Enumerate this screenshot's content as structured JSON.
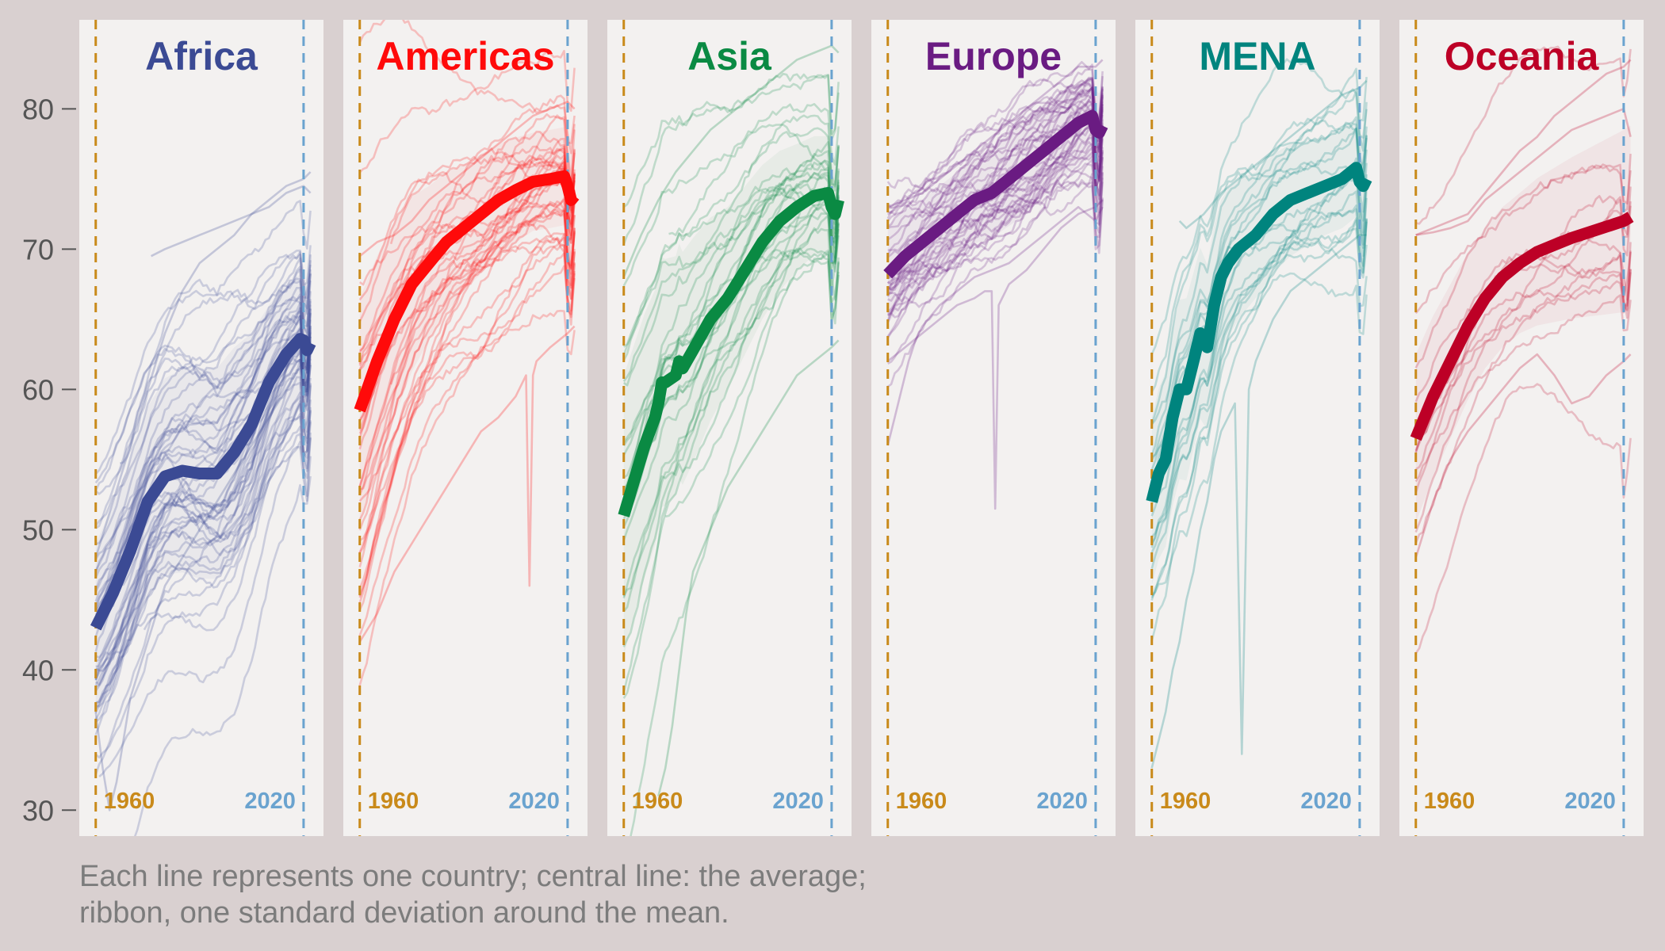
{
  "caption": {
    "line1": "Each line represents one country; central line: the average;",
    "line2": "ribbon, one standard deviation around the mean."
  },
  "colors": {
    "background": "#d9d0d0",
    "panel": "#f3f1f0",
    "start_line": "#c98a1a",
    "end_line": "#6aa3cf",
    "axis_text": "#555555"
  },
  "chart_data": {
    "type": "line",
    "xlim": [
      1958,
      2023
    ],
    "ylim": [
      29,
      85.5
    ],
    "yticks": [
      30,
      40,
      50,
      60,
      70,
      80
    ],
    "ref_lines": [
      {
        "x": 1960,
        "label": "1960",
        "color": "#c98a1a"
      },
      {
        "x": 2020,
        "label": "2020",
        "color": "#6aa3cf"
      }
    ],
    "panels": [
      {
        "name": "Africa",
        "color": "#3b4a94",
        "n_countries": 54,
        "mean": {
          "x": [
            1960,
            1965,
            1970,
            1975,
            1980,
            1985,
            1990,
            1995,
            2000,
            2005,
            2010,
            2015,
            2019,
            2020,
            2021,
            2022
          ],
          "y": [
            43,
            45.5,
            48.5,
            52,
            53.8,
            54.2,
            54,
            54,
            55.5,
            57.5,
            60.5,
            62.5,
            63.6,
            63.5,
            62.8,
            63.3
          ]
        },
        "band": {
          "x": [
            1960,
            1970,
            1980,
            1990,
            2000,
            2010,
            2020
          ],
          "sd": [
            6,
            6.5,
            7,
            7.5,
            7.5,
            5.5,
            4.5
          ]
        },
        "outliers": [
          {
            "x": [
              1960,
              1965,
              1970,
              1975,
              1980,
              1985,
              1990,
              1995,
              2000,
              2005,
              2010,
              2015,
              2020,
              2022
            ],
            "y": [
              48,
              52,
              56,
              60,
              64,
              67,
              69,
              70,
              71,
              72.5,
              73.5,
              74.5,
              75,
              75.5
            ]
          },
          {
            "x": [
              1976,
              1980,
              1985,
              1990,
              1995,
              2000,
              2005,
              2010,
              2015,
              2020,
              2022
            ],
            "y": [
              69.5,
              70,
              70.5,
              71,
              71.5,
              72,
              72.5,
              73,
              74,
              74.5,
              74
            ]
          },
          {
            "x": [
              1960,
              1962,
              1964,
              1966,
              1968,
              1970,
              1975,
              1980,
              1985,
              1990,
              1995,
              2000,
              2010,
              2020,
              2022
            ],
            "y": [
              37,
              33,
              30,
              32,
              35,
              38,
              42,
              46,
              48,
              50,
              52,
              54,
              58,
              62,
              64
            ]
          }
        ]
      },
      {
        "name": "Americas",
        "color": "#ff0a0a",
        "n_countries": 38,
        "mean": {
          "x": [
            1960,
            1965,
            1970,
            1975,
            1980,
            1985,
            1990,
            1995,
            2000,
            2005,
            2010,
            2015,
            2019,
            2020,
            2021,
            2022
          ],
          "y": [
            58.5,
            62,
            65,
            67.5,
            69,
            70.5,
            71.5,
            72.5,
            73.5,
            74.2,
            74.8,
            75,
            75.2,
            74.5,
            73.5,
            73.8
          ]
        },
        "band": {
          "x": [
            1960,
            1970,
            1980,
            1990,
            2000,
            2010,
            2020
          ],
          "sd": [
            8,
            7,
            5.5,
            4.5,
            4,
            3.5,
            3.5
          ]
        },
        "outliers": [
          {
            "x": [
              1960,
              1965,
              1970,
              1975,
              1980,
              1985,
              1990,
              1995,
              2000,
              2005,
              2008,
              2009,
              2010,
              2011,
              2015,
              2020,
              2022
            ],
            "y": [
              42,
              44,
              47,
              49,
              51,
              53,
              55,
              57,
              58,
              59.5,
              61,
              46,
              61,
              62,
              63,
              64,
              64.5
            ]
          },
          {
            "x": [
              1960,
              1965,
              1970,
              1975,
              1980,
              1985,
              1990,
              1995,
              2000,
              2005,
              2010,
              2015,
              2020,
              2022
            ],
            "y": [
              69.5,
              70.5,
              71,
              72,
              73.5,
              74.5,
              75.5,
              76.5,
              77.5,
              78.5,
              79.5,
              80,
              80.5,
              80
            ]
          }
        ]
      },
      {
        "name": "Asia",
        "color": "#0a8a43",
        "n_countries": 30,
        "mean": {
          "x": [
            1960,
            1963,
            1966,
            1969,
            1970,
            1971,
            1972,
            1975,
            1976,
            1977,
            1980,
            1985,
            1990,
            1995,
            2000,
            2005,
            2010,
            2015,
            2019,
            2020,
            2021,
            2022
          ],
          "y": [
            51,
            53.5,
            56,
            58,
            59,
            60.5,
            60.5,
            61,
            62,
            61.5,
            62.8,
            65,
            66.5,
            68.5,
            70.5,
            72,
            73,
            73.8,
            74,
            73,
            72.5,
            73.5
          ]
        },
        "band": {
          "x": [
            1960,
            1970,
            1980,
            1990,
            2000,
            2010,
            2020
          ],
          "sd": [
            10,
            9,
            8,
            6.5,
            5.5,
            4.5,
            4
          ]
        },
        "outliers": [
          {
            "x": [
              1960,
              1965,
              1970,
              1975,
              1980,
              1985,
              1990,
              1995,
              2000,
              2005,
              2010,
              2015,
              2020,
              2022
            ],
            "y": [
              68,
              71,
              73.5,
              75.5,
              77,
              78.5,
              79.5,
              80.5,
              81.5,
              82.5,
              83.5,
              84,
              84.5,
              84
            ]
          },
          {
            "x": [
              1970,
              1972,
              1974,
              1976,
              1978,
              1980,
              1985,
              1990,
              1995,
              2000,
              2005,
              2010,
              2015,
              2020,
              2022
            ],
            "y": [
              31,
              33,
              36,
              40,
              44,
              47,
              50,
              53,
              55,
              57,
              59,
              61,
              62,
              63,
              63.5
            ]
          }
        ]
      },
      {
        "name": "Europe",
        "color": "#6a1b82",
        "n_countries": 42,
        "mean": {
          "x": [
            1960,
            1965,
            1970,
            1975,
            1980,
            1985,
            1990,
            1995,
            2000,
            2005,
            2010,
            2015,
            2019,
            2020,
            2021,
            2022
          ],
          "y": [
            68.2,
            69.5,
            70.5,
            71.5,
            72.5,
            73.5,
            74,
            75,
            76,
            77,
            78,
            79,
            79.5,
            78.5,
            78.3,
            78.8
          ]
        },
        "band": {
          "x": [
            1960,
            1970,
            1980,
            1990,
            2000,
            2010,
            2020
          ],
          "sd": [
            3.5,
            3,
            3,
            3.2,
            3.5,
            3,
            2.8
          ]
        },
        "outliers": [
          {
            "x": [
              1960,
              1962,
              1964,
              1966,
              1968,
              1970,
              1975,
              1980,
              1985,
              1990,
              1995,
              2000,
              2005,
              2010,
              2015,
              2020,
              2022
            ],
            "y": [
              56,
              58,
              60,
              62,
              63.5,
              64.5,
              66,
              67,
              68,
              68.5,
              69,
              70,
              71,
              72,
              73,
              72,
              73
            ]
          },
          {
            "x": [
              1960,
              1965,
              1970,
              1975,
              1980,
              1985,
              1988,
              1990,
              1991,
              1992,
              1994,
              1995,
              2000,
              2005,
              2010,
              2015,
              2020,
              2022
            ],
            "y": [
              62,
              63,
              64,
              65,
              66,
              66.5,
              67,
              67,
              51.5,
              66,
              67,
              67.5,
              68.5,
              70,
              71.5,
              72.5,
              73,
              73.5
            ]
          },
          {
            "x": [
              1960,
              1965,
              1970,
              1975,
              1980,
              1985,
              1990,
              1995,
              2000,
              2005,
              2010,
              2015,
              2020,
              2022
            ],
            "y": [
              73,
              73.5,
              74,
              75,
              76,
              77,
              78,
              79,
              80,
              81,
              82,
              83,
              83,
              83.5
            ]
          }
        ]
      },
      {
        "name": "MENA",
        "color": "#00847e",
        "n_countries": 20,
        "mean": {
          "x": [
            1960,
            1962,
            1964,
            1966,
            1968,
            1970,
            1972,
            1974,
            1976,
            1978,
            1980,
            1982,
            1985,
            1990,
            1995,
            2000,
            2005,
            2010,
            2015,
            2019,
            2020,
            2021,
            2022
          ],
          "y": [
            52,
            54,
            55,
            58,
            60,
            60,
            62,
            64,
            63,
            66,
            68,
            69,
            70,
            71,
            72.5,
            73.5,
            74,
            74.5,
            75,
            75.8,
            74.8,
            74.5,
            75
          ]
        },
        "band": {
          "x": [
            1960,
            1970,
            1980,
            1990,
            2000,
            2010,
            2020
          ],
          "sd": [
            6,
            6.5,
            5.5,
            4.5,
            4,
            3.5,
            3.5
          ]
        },
        "outliers": [
          {
            "x": [
              1960,
              1962,
              1964,
              1966,
              1968,
              1970,
              1972,
              1974,
              1976,
              1978,
              1980,
              1982,
              1984,
              1986,
              1988,
              1990,
              1995,
              2000,
              2005,
              2010,
              2015,
              2020,
              2022
            ],
            "y": [
              33,
              35,
              37,
              40,
              42,
              45,
              47,
              50,
              52,
              55,
              57,
              58,
              59,
              34,
              60,
              62,
              65,
              67,
              68,
              69,
              70,
              71,
              71
            ]
          },
          {
            "x": [
              1968,
              1970,
              1975,
              1980,
              1985,
              1990,
              1995,
              2000,
              2005,
              2010,
              2015,
              2020,
              2022
            ],
            "y": [
              72,
              71.5,
              72.5,
              74,
              75,
              76,
              77,
              78,
              79,
              80,
              81,
              81.5,
              82
            ]
          }
        ]
      },
      {
        "name": "Oceania",
        "color": "#bd0026",
        "n_countries": 14,
        "mean": {
          "x": [
            1960,
            1965,
            1970,
            1975,
            1980,
            1985,
            1990,
            1995,
            2000,
            2005,
            2010,
            2015,
            2020,
            2022
          ],
          "y": [
            56.5,
            59.5,
            62,
            64.5,
            66.5,
            68,
            69,
            69.8,
            70.3,
            70.8,
            71.2,
            71.6,
            72,
            72.3
          ]
        },
        "band": {
          "x": [
            1960,
            1970,
            1980,
            1990,
            2000,
            2010,
            2020
          ],
          "sd": [
            6,
            5.5,
            5,
            5,
            5.5,
            6,
            6.5
          ]
        },
        "outliers": [
          {
            "x": [
              1960,
              1965,
              1970,
              1975,
              1980,
              1985,
              1990,
              1995,
              2000,
              2005,
              2010,
              2015,
              2020,
              2022
            ],
            "y": [
              71,
              71.5,
              72,
              72.5,
              74,
              75.5,
              77,
              78,
              79.5,
              80.5,
              81.5,
              82.5,
              83,
              83.5
            ]
          },
          {
            "x": [
              1960,
              1965,
              1970,
              1975,
              1980,
              1985,
              1990,
              1995,
              2000,
              2005,
              2010,
              2015,
              2020,
              2022
            ],
            "y": [
              71,
              71.2,
              71.5,
              72,
              73.5,
              74.5,
              75.5,
              76.5,
              77.5,
              78.5,
              79,
              79.5,
              80,
              78
            ]
          },
          {
            "x": [
              1960,
              1965,
              1970,
              1975,
              1980,
              1985,
              1990,
              1995,
              2000,
              2005,
              2010,
              2015,
              2020,
              2022
            ],
            "y": [
              48,
              52,
              55,
              57,
              58.5,
              60,
              61.5,
              62.5,
              61,
              59,
              59.5,
              61,
              62,
              62.5
            ]
          }
        ]
      }
    ]
  }
}
